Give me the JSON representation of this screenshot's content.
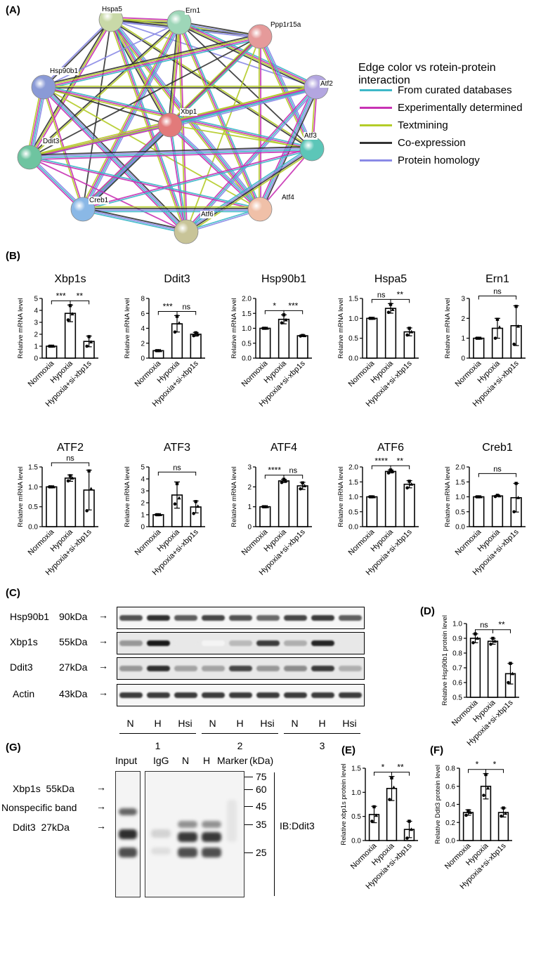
{
  "panels": {
    "A": "(A)",
    "B": "(B)",
    "C": "(C)",
    "D": "(D)",
    "E": "(E)",
    "F": "(F)",
    "G": "(G)"
  },
  "network": {
    "legend_title": "Edge color vs rotein-protein interaction",
    "legend": [
      {
        "label": "From curated databases",
        "color": "#3db8c8"
      },
      {
        "label": "Experimentally determined",
        "color": "#c832b4"
      },
      {
        "label": "Textmining",
        "color": "#b4cc28"
      },
      {
        "label": "Co-expression",
        "color": "#333333"
      },
      {
        "label": "Protein homology",
        "color": "#8a8ae6"
      }
    ],
    "nodes": [
      {
        "name": "Hspa5",
        "color": "#c9d9a8"
      },
      {
        "name": "Ern1",
        "color": "#9ed6b8"
      },
      {
        "name": "Ppp1r15a",
        "color": "#e59a9a"
      },
      {
        "name": "Hsp90b1",
        "color": "#8a9ad6"
      },
      {
        "name": "Atf2",
        "color": "#b3a6e0"
      },
      {
        "name": "Xbp1",
        "color": "#e27a7a"
      },
      {
        "name": "Ddit3",
        "color": "#6ec4a0"
      },
      {
        "name": "Atf3",
        "color": "#5cc6b8"
      },
      {
        "name": "Creb1",
        "color": "#8ab8e6"
      },
      {
        "name": "Atf4",
        "color": "#f0c0a8"
      },
      {
        "name": "Atf6",
        "color": "#c8c498"
      }
    ]
  },
  "common": {
    "ylabel_mrna": "Relative mRNA level",
    "groups": [
      "Normoxia",
      "Hypoxia",
      "Hypoxia+si-xbp1s"
    ]
  },
  "chart_data": [
    {
      "type": "bar",
      "title": "Xbp1s",
      "categories": [
        "Normoxia",
        "Hypoxia",
        "Hypoxia+si-xbp1s"
      ],
      "values": [
        1.0,
        3.75,
        1.4
      ],
      "errors": [
        0.02,
        0.7,
        0.45
      ],
      "points": [
        [
          1,
          1,
          1
        ],
        [
          3.2,
          4.4,
          3.7
        ],
        [
          1.0,
          1.8,
          1.35
        ]
      ],
      "ylim": [
        0,
        5
      ],
      "yticks": [
        "0",
        "1",
        "2",
        "3",
        "4",
        "5"
      ],
      "ylabel": "Relative mRNA level",
      "sig": [
        {
          "from": 0,
          "to": 1,
          "label": "***"
        },
        {
          "from": 1,
          "to": 2,
          "label": "**"
        }
      ]
    },
    {
      "type": "bar",
      "title": "Ddit3",
      "categories": [
        "Normoxia",
        "Hypoxia",
        "Hypoxia+si-xbp1s"
      ],
      "values": [
        1.0,
        4.6,
        3.2
      ],
      "errors": [
        0.02,
        1.1,
        0.25
      ],
      "points": [
        [
          1,
          1,
          1
        ],
        [
          3.5,
          5.6,
          4.7
        ],
        [
          3.0,
          3.4,
          3.2
        ]
      ],
      "ylim": [
        0,
        8
      ],
      "yticks": [
        "0",
        "2",
        "4",
        "6",
        "8"
      ],
      "ylabel": "Relative mRNA level",
      "sig": [
        {
          "from": 0,
          "to": 1,
          "label": "***"
        },
        {
          "from": 1,
          "to": 2,
          "label": "ns"
        }
      ]
    },
    {
      "type": "bar",
      "title": "Hsp90b1",
      "categories": [
        "Normoxia",
        "Hypoxia",
        "Hypoxia+si-xbp1s"
      ],
      "values": [
        1.0,
        1.3,
        0.75
      ],
      "errors": [
        0.01,
        0.15,
        0.02
      ],
      "points": [
        [
          1,
          1,
          1
        ],
        [
          1.18,
          1.45,
          1.28
        ],
        [
          0.74,
          0.76,
          0.75
        ]
      ],
      "ylim": [
        0,
        2.0
      ],
      "yticks": [
        "0.0",
        "0.5",
        "1.0",
        "1.5",
        "2.0"
      ],
      "ylabel": "Relative mRNA level",
      "sig": [
        {
          "from": 0,
          "to": 1,
          "label": "*"
        },
        {
          "from": 1,
          "to": 2,
          "label": "***"
        }
      ]
    },
    {
      "type": "bar",
      "title": "Hspa5",
      "categories": [
        "Normoxia",
        "Hypoxia",
        "Hypoxia+si-xbp1s"
      ],
      "values": [
        1.0,
        1.25,
        0.66
      ],
      "errors": [
        0.01,
        0.12,
        0.1
      ],
      "points": [
        [
          1,
          1,
          1
        ],
        [
          1.15,
          1.35,
          1.22
        ],
        [
          0.58,
          0.75,
          0.66
        ]
      ],
      "ylim": [
        0,
        1.5
      ],
      "yticks": [
        "0.0",
        "0.5",
        "1.0",
        "1.5"
      ],
      "ylabel": "Relative mRNA level",
      "sig": [
        {
          "from": 0,
          "to": 1,
          "label": "ns"
        },
        {
          "from": 1,
          "to": 2,
          "label": "**"
        }
      ]
    },
    {
      "type": "bar",
      "title": "Ern1",
      "categories": [
        "Normoxia",
        "Hypoxia",
        "Hypoxia+si-xbp1s"
      ],
      "values": [
        1.0,
        1.5,
        1.63
      ],
      "errors": [
        0.01,
        0.5,
        1.0
      ],
      "points": [
        [
          1,
          1,
          1
        ],
        [
          1.0,
          1.95,
          1.55
        ],
        [
          0.7,
          2.6,
          1.6
        ]
      ],
      "ylim": [
        0,
        3
      ],
      "yticks": [
        "0",
        "1",
        "2",
        "3"
      ],
      "ylabel": "Relative mRNA level",
      "sig": [
        {
          "from": 0,
          "to": 2,
          "label": "ns"
        }
      ]
    },
    {
      "type": "bar",
      "title": "ATF2",
      "categories": [
        "Normoxia",
        "Hypoxia",
        "Hypoxia+si-xbp1s"
      ],
      "values": [
        1.0,
        1.22,
        0.92
      ],
      "errors": [
        0.01,
        0.08,
        0.5
      ],
      "points": [
        [
          1,
          1,
          1
        ],
        [
          1.15,
          1.28,
          1.22
        ],
        [
          0.4,
          1.4,
          0.95
        ]
      ],
      "ylim": [
        0,
        1.5
      ],
      "yticks": [
        "0.0",
        "0.5",
        "1.0",
        "1.5"
      ],
      "ylabel": "Relative mRNA level",
      "sig": [
        {
          "from": 0,
          "to": 2,
          "label": "ns"
        }
      ]
    },
    {
      "type": "bar",
      "title": "ATF3",
      "categories": [
        "Normoxia",
        "Hypoxia",
        "Hypoxia+si-xbp1s"
      ],
      "values": [
        1.0,
        2.65,
        1.65
      ],
      "errors": [
        0.01,
        1.1,
        0.5
      ],
      "points": [
        [
          1,
          1,
          1
        ],
        [
          1.9,
          3.6,
          2.4
        ],
        [
          1.1,
          2.1,
          1.7
        ]
      ],
      "ylim": [
        0,
        5
      ],
      "yticks": [
        "0",
        "1",
        "2",
        "3",
        "4",
        "5"
      ],
      "ylabel": "Relative mRNA level",
      "sig": [
        {
          "from": 0,
          "to": 2,
          "label": "ns"
        }
      ]
    },
    {
      "type": "bar",
      "title": "ATF4",
      "categories": [
        "Normoxia",
        "Hypoxia",
        "Hypoxia+si-xbp1s"
      ],
      "values": [
        1.0,
        2.3,
        2.05
      ],
      "errors": [
        0.01,
        0.08,
        0.18
      ],
      "points": [
        [
          1,
          1,
          1
        ],
        [
          2.22,
          2.38,
          2.3
        ],
        [
          1.9,
          2.2,
          2.05
        ]
      ],
      "ylim": [
        0,
        3
      ],
      "yticks": [
        "0",
        "1",
        "2",
        "3"
      ],
      "ylabel": "Relative mRNA level",
      "sig": [
        {
          "from": 0,
          "to": 1,
          "label": "****"
        },
        {
          "from": 1,
          "to": 2,
          "label": "ns"
        }
      ]
    },
    {
      "type": "bar",
      "title": "ATF6",
      "categories": [
        "Normoxia",
        "Hypoxia",
        "Hypoxia+si-xbp1s"
      ],
      "values": [
        1.0,
        1.85,
        1.42
      ],
      "errors": [
        0.01,
        0.05,
        0.12
      ],
      "points": [
        [
          1,
          1,
          1
        ],
        [
          1.8,
          1.9,
          1.85
        ],
        [
          1.3,
          1.52,
          1.42
        ]
      ],
      "ylim": [
        0,
        2.0
      ],
      "yticks": [
        "0.0",
        "0.5",
        "1.0",
        "1.5",
        "2.0"
      ],
      "ylabel": "Relative mRNA level",
      "sig": [
        {
          "from": 0,
          "to": 1,
          "label": "****"
        },
        {
          "from": 1,
          "to": 2,
          "label": "**"
        }
      ]
    },
    {
      "type": "bar",
      "title": "Creb1",
      "categories": [
        "Normoxia",
        "Hypoxia",
        "Hypoxia+si-xbp1s"
      ],
      "values": [
        1.0,
        1.03,
        0.97
      ],
      "errors": [
        0.01,
        0.02,
        0.48
      ],
      "points": [
        [
          1,
          1,
          1
        ],
        [
          1.01,
          1.05,
          1.03
        ],
        [
          0.5,
          1.45,
          0.97
        ]
      ],
      "ylim": [
        0,
        2.0
      ],
      "yticks": [
        "0.0",
        "0.5",
        "1.0",
        "1.5",
        "2.0"
      ],
      "ylabel": "Relative mRNA level",
      "sig": [
        {
          "from": 0,
          "to": 2,
          "label": "ns"
        }
      ]
    },
    {
      "type": "bar",
      "title": "",
      "categories": [
        "Normoxia",
        "Hypoxia",
        "Hypoxia+si-xbp1s"
      ],
      "values": [
        0.9,
        0.88,
        0.66
      ],
      "errors": [
        0.03,
        0.02,
        0.07
      ],
      "points": [
        [
          0.87,
          0.93,
          0.9
        ],
        [
          0.86,
          0.9,
          0.88
        ],
        [
          0.6,
          0.73,
          0.66
        ]
      ],
      "ylim": [
        0.5,
        1.0
      ],
      "yticks": [
        "0.5",
        "0.6",
        "0.7",
        "0.8",
        "0.9",
        "1.0"
      ],
      "ylabel": "Relative Hsp90b1 protein level",
      "sig": [
        {
          "from": 0,
          "to": 1,
          "label": "ns"
        },
        {
          "from": 1,
          "to": 2,
          "label": "**"
        }
      ]
    },
    {
      "type": "bar",
      "title": "",
      "categories": [
        "Normoxia",
        "Hypoxia",
        "Hypoxia+si-xbp1s"
      ],
      "values": [
        0.54,
        1.08,
        0.23
      ],
      "errors": [
        0.17,
        0.25,
        0.17
      ],
      "points": [
        [
          0.4,
          0.7,
          0.52
        ],
        [
          0.85,
          1.3,
          1.1
        ],
        [
          0.05,
          0.4,
          0.23
        ]
      ],
      "ylim": [
        0,
        1.5
      ],
      "yticks": [
        "0.0",
        "0.5",
        "1.0",
        "1.5"
      ],
      "ylabel": "Relative xbp1s protein level",
      "sig": [
        {
          "from": 0,
          "to": 1,
          "label": "*"
        },
        {
          "from": 1,
          "to": 2,
          "label": "**"
        }
      ]
    },
    {
      "type": "bar",
      "title": "",
      "categories": [
        "Normoxia",
        "Hypoxia",
        "Hypoxia+si-xbp1s"
      ],
      "values": [
        0.31,
        0.6,
        0.31
      ],
      "errors": [
        0.03,
        0.14,
        0.05
      ],
      "points": [
        [
          0.28,
          0.33,
          0.31
        ],
        [
          0.5,
          0.73,
          0.58
        ],
        [
          0.27,
          0.36,
          0.3
        ]
      ],
      "ylim": [
        0,
        0.8
      ],
      "yticks": [
        "0.0",
        "0.2",
        "0.4",
        "0.6",
        "0.8"
      ],
      "ylabel": "Relative Ddit3 protein level",
      "sig": [
        {
          "from": 0,
          "to": 1,
          "label": "*"
        },
        {
          "from": 1,
          "to": 2,
          "label": "*"
        }
      ]
    }
  ],
  "blotC": {
    "rows": [
      {
        "protein": "Hsp90b1",
        "size": "90kDa",
        "intensity": [
          0.75,
          0.9,
          0.7,
          0.8,
          0.75,
          0.65,
          0.8,
          0.85,
          0.7
        ]
      },
      {
        "protein": "Xbp1s",
        "size": "55kDa",
        "intensity": [
          0.45,
          1.0,
          0.1,
          0.05,
          0.3,
          0.85,
          0.35,
          0.95,
          0.1
        ]
      },
      {
        "protein": "Ddit3",
        "size": "27kDa",
        "intensity": [
          0.45,
          0.9,
          0.4,
          0.4,
          0.8,
          0.45,
          0.5,
          0.85,
          0.35
        ]
      },
      {
        "protein": "Actin",
        "size": "43kDa",
        "intensity": [
          0.85,
          0.85,
          0.85,
          0.85,
          0.85,
          0.85,
          0.85,
          0.85,
          0.85
        ]
      }
    ],
    "lanes": [
      "N",
      "H",
      "Hsi",
      "N",
      "H",
      "Hsi",
      "N",
      "H",
      "Hsi"
    ],
    "groups": [
      "1",
      "2",
      "3"
    ]
  },
  "blotG": {
    "headers": [
      "Input",
      "IgG",
      "N",
      "H",
      "Marker",
      "(kDa)"
    ],
    "labels": [
      {
        "name": "Xbp1s",
        "size": "55kDa"
      },
      {
        "name": "Nonspecific band",
        "size": ""
      },
      {
        "name": "Ddit3",
        "size": "27kDa"
      }
    ],
    "markers": [
      "75",
      "60",
      "45",
      "35",
      "25"
    ],
    "ib": "IB:Ddit3"
  }
}
